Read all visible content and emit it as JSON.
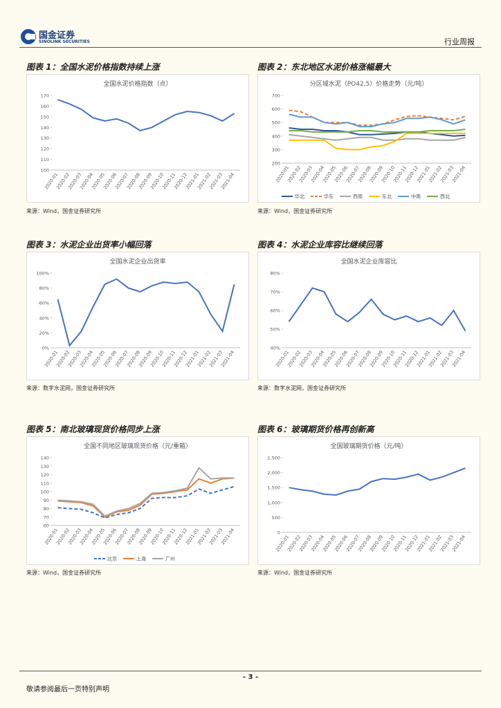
{
  "header": {
    "logo_cn": "国金证券",
    "logo_en": "SINOLINK SECURITIES",
    "section": "行业周报"
  },
  "footer": {
    "page": "- 3 -",
    "disclaimer": "敬请参阅最后一页特别声明"
  },
  "chart_data": [
    {
      "type": "line",
      "caption": "图表 1：全国水泥价格指数持续上涨",
      "title": "全国水泥价格指数（点）",
      "source": "来源：Wind，国金证券研究所",
      "categories": [
        "2020-01",
        "2020-02",
        "2020-03",
        "2020-04",
        "2020-05",
        "2020-06",
        "2020-07",
        "2020-08",
        "2020-09",
        "2020-10",
        "2020-11",
        "2020-12",
        "2021-01",
        "2021-02",
        "2021-03",
        "2021-04"
      ],
      "ylim": [
        100,
        170
      ],
      "yticks": [
        100,
        110,
        120,
        130,
        140,
        150,
        160,
        170
      ],
      "series": [
        {
          "color": "#4472c4",
          "values": [
            166,
            162,
            157,
            149,
            146,
            148,
            144,
            137,
            140,
            146,
            152,
            155,
            154,
            151,
            146,
            153
          ]
        }
      ]
    },
    {
      "type": "line",
      "caption": "图表 2：东北地区水泥价格涨幅最大",
      "title": "分区域水泥（PO42.5）价格走势（元/吨）",
      "source": "来源：Wind，国金证券研究所",
      "categories": [
        "2020-01",
        "2020-02",
        "2020-03",
        "2020-04",
        "2020-05",
        "2020-06",
        "2020-07",
        "2020-08",
        "2020-09",
        "2020-10",
        "2020-11",
        "2020-12",
        "2021-01",
        "2021-02",
        "2021-03",
        "2021-04"
      ],
      "ylim": [
        200,
        700
      ],
      "yticks": [
        200,
        300,
        400,
        500,
        600,
        700
      ],
      "legend": "bottom",
      "series": [
        {
          "name": "华北",
          "color": "#2f5597",
          "values": [
            460,
            450,
            450,
            440,
            440,
            430,
            410,
            410,
            415,
            420,
            430,
            430,
            420,
            410,
            400,
            405
          ]
        },
        {
          "name": "华东",
          "color": "#ed7d31",
          "dash": true,
          "values": [
            590,
            580,
            540,
            500,
            500,
            500,
            480,
            480,
            490,
            520,
            545,
            550,
            540,
            530,
            520,
            545
          ]
        },
        {
          "name": "西南",
          "color": "#a5a5a5",
          "values": [
            410,
            400,
            390,
            380,
            370,
            380,
            390,
            390,
            370,
            370,
            380,
            380,
            370,
            370,
            370,
            390
          ]
        },
        {
          "name": "东北",
          "color": "#ffc000",
          "values": [
            370,
            370,
            370,
            370,
            310,
            300,
            300,
            320,
            330,
            360,
            420,
            420,
            420,
            420,
            420,
            420
          ]
        },
        {
          "name": "中南",
          "color": "#5b9bd5",
          "values": [
            560,
            540,
            540,
            500,
            490,
            500,
            470,
            470,
            490,
            500,
            530,
            530,
            540,
            520,
            490,
            520
          ]
        },
        {
          "name": "西北",
          "color": "#70ad47",
          "values": [
            440,
            440,
            430,
            430,
            430,
            430,
            440,
            440,
            430,
            430,
            430,
            430,
            440,
            440,
            440,
            450
          ]
        }
      ]
    },
    {
      "type": "line",
      "caption": "图表 3：水泥企业出货率小幅回落",
      "title": "全国水泥企业出货率",
      "source": "来源：数字水泥网，国金证券研究所",
      "categories": [
        "2020-01",
        "2020-02",
        "2020-03",
        "2020-04",
        "2020-05",
        "2020-06",
        "2020-07",
        "2020-08",
        "2020-09",
        "2020-10",
        "2020-11",
        "2020-12",
        "2021-01",
        "2021-02",
        "2021-03",
        "2021-04"
      ],
      "ylim": [
        0,
        100
      ],
      "yticks": [
        {
          "value": 0,
          "label": "0%"
        },
        {
          "value": 20,
          "label": "20%"
        },
        {
          "value": 40,
          "label": "40%"
        },
        {
          "value": 60,
          "label": "60%"
        },
        {
          "value": 80,
          "label": "80%"
        },
        {
          "value": 100,
          "label": "100%"
        }
      ],
      "series": [
        {
          "color": "#4472c4",
          "values": [
            65,
            3,
            22,
            55,
            85,
            92,
            80,
            75,
            83,
            88,
            86,
            88,
            75,
            45,
            22,
            85
          ]
        }
      ]
    },
    {
      "type": "line",
      "caption": "图表 4：水泥企业库容比继续回落",
      "title": "全国水泥企业库容比",
      "source": "来源：数字水泥网，国金证券研究所",
      "categories": [
        "2020-01",
        "2020-02",
        "2020-03",
        "2020-04",
        "2020-05",
        "2020-06",
        "2020-07",
        "2020-08",
        "2020-09",
        "2020-10",
        "2020-11",
        "2020-12",
        "2021-01",
        "2021-02",
        "2021-03",
        "2021-04"
      ],
      "ylim": [
        40,
        80
      ],
      "yticks": [
        {
          "value": 40,
          "label": "40%"
        },
        {
          "value": 50,
          "label": "50%"
        },
        {
          "value": 60,
          "label": "60%"
        },
        {
          "value": 70,
          "label": "70%"
        },
        {
          "value": 80,
          "label": "80%"
        }
      ],
      "series": [
        {
          "color": "#4472c4",
          "values": [
            54,
            63,
            72,
            70,
            58,
            54,
            59,
            66,
            58,
            55,
            57,
            54,
            56,
            52,
            60,
            49
          ]
        }
      ]
    },
    {
      "type": "line",
      "caption": "图表 5：南北玻璃现货价格同步上涨",
      "title": "全国不同地区玻璃现货价格（元/重箱）",
      "source": "来源：Wind，国金证券研究所",
      "categories": [
        "2020-01",
        "2020-02",
        "2020-03",
        "2020-04",
        "2020-05",
        "2020-06",
        "2020-07",
        "2020-08",
        "2020-09",
        "2020-10",
        "2020-11",
        "2020-12",
        "2021-01",
        "2021-02",
        "2021-03",
        "2021-04"
      ],
      "ylim": [
        60,
        140
      ],
      "yticks": [
        60,
        70,
        80,
        90,
        100,
        110,
        120,
        130,
        140
      ],
      "legend": "bottom",
      "series": [
        {
          "name": "北京",
          "color": "#4472c4",
          "dash": true,
          "values": [
            81,
            80,
            79,
            75,
            69,
            73,
            75,
            80,
            92,
            93,
            93,
            95,
            103,
            98,
            102,
            106
          ]
        },
        {
          "name": "上海",
          "color": "#ed7d31",
          "values": [
            89,
            88,
            87,
            83,
            70,
            76,
            78,
            84,
            97,
            98,
            100,
            102,
            115,
            110,
            115,
            116
          ]
        },
        {
          "name": "广州",
          "color": "#a5a5a5",
          "values": [
            90,
            89,
            88,
            85,
            71,
            77,
            80,
            86,
            98,
            99,
            101,
            104,
            128,
            115,
            116,
            116
          ]
        }
      ]
    },
    {
      "type": "line",
      "caption": "图表 6：玻璃期货价格再创新高",
      "title": "全国玻璃期货价格（元/吨）",
      "source": "来源：Wind，国金证券研究所",
      "categories": [
        "2020-01",
        "2020-02",
        "2020-03",
        "2020-04",
        "2020-05",
        "2020-06",
        "2020-07",
        "2020-08",
        "2020-09",
        "2020-10",
        "2020-11",
        "2020-12",
        "2021-01",
        "2021-02",
        "2021-03",
        "2021-04"
      ],
      "ylim": [
        0,
        2500
      ],
      "yticks": [
        0,
        500,
        {
          "value": 1000,
          "label": "1,000"
        },
        {
          "value": 1500,
          "label": "1,500"
        },
        {
          "value": 2000,
          "label": "2,000"
        },
        {
          "value": 2500,
          "label": "2,500"
        }
      ],
      "series": [
        {
          "color": "#4472c4",
          "values": [
            1500,
            1430,
            1380,
            1280,
            1250,
            1380,
            1450,
            1700,
            1800,
            1780,
            1850,
            1950,
            1750,
            1850,
            2000,
            2150
          ]
        }
      ]
    }
  ]
}
